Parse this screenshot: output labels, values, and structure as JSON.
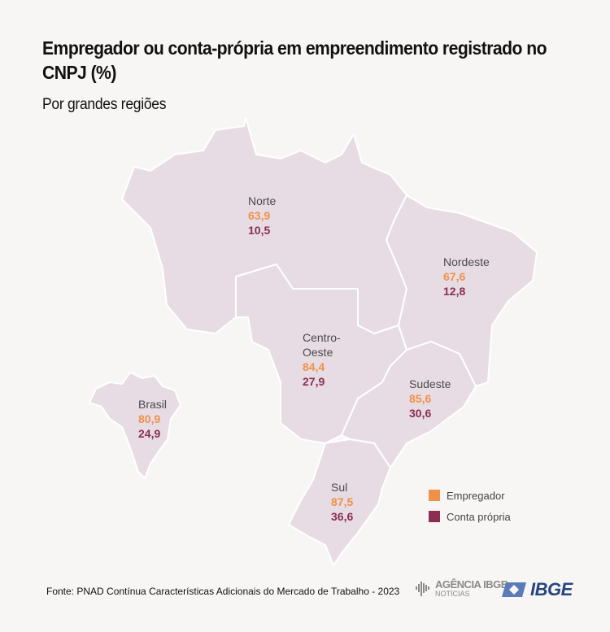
{
  "title": "Empregador ou conta-própria em empreendimento registrado no CNPJ (%)",
  "subtitle": "Por grandes regiões",
  "colors": {
    "empregador": "#f0914a",
    "conta_propria": "#8b2e52",
    "map_fill": "#e7dce3",
    "background": "#f7f6f4"
  },
  "regions": [
    {
      "name": "Norte",
      "empregador": "63,9",
      "conta_propria": "10,5"
    },
    {
      "name": "Nordeste",
      "empregador": "67,6",
      "conta_propria": "12,8"
    },
    {
      "name": "Centro-Oeste",
      "empregador": "84,4",
      "conta_propria": "27,9"
    },
    {
      "name": "Sudeste",
      "empregador": "85,6",
      "conta_propria": "30,6"
    },
    {
      "name": "Sul",
      "empregador": "87,5",
      "conta_propria": "36,6"
    }
  ],
  "brasil": {
    "name": "Brasil",
    "empregador": "80,9",
    "conta_propria": "24,9"
  },
  "legend": {
    "empregador": "Empregador",
    "conta_propria": "Conta própria"
  },
  "source": "Fonte: PNAD Contínua Características Adicionais do Mercado de Trabalho - 2023",
  "logos": {
    "agencia": "AGÊNCIA IBGE",
    "agencia_sub": "NOTÍCIAS",
    "ibge": "IBGE"
  }
}
